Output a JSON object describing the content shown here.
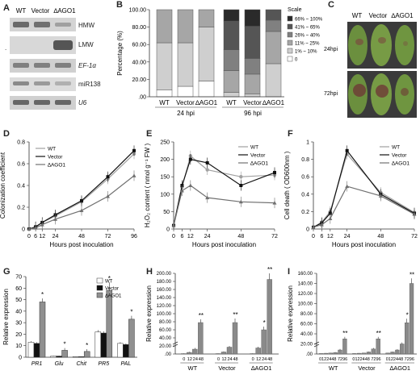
{
  "panels": {
    "A": {
      "label": "A",
      "lanes": [
        "WT",
        "Vector",
        "∆AGO1"
      ],
      "rows": [
        "HMW",
        "LMW",
        "EF-1α",
        "miR138",
        "U6"
      ],
      "dot": "."
    },
    "B": {
      "label": "B",
      "ylabel": "Percentage (%)",
      "yticks": [
        "100.00",
        "80.00",
        "60.00",
        "40.00",
        "20.00",
        ".00"
      ],
      "legend_title": "Scale",
      "legend": [
        "66% ~ 100%",
        "41% ~ 65%",
        "26% ~ 40%",
        "11% ~ 25%",
        "1% ~ 10%",
        "0"
      ],
      "legend_colors": [
        "#2a2a2a",
        "#555555",
        "#808080",
        "#a6a6a6",
        "#cfcfcf",
        "#ffffff"
      ],
      "groups": [
        {
          "name": "24 hpi",
          "bars": [
            "WT",
            "Vector",
            "∆AGO1"
          ]
        },
        {
          "name": "96 hpi",
          "bars": [
            "WT",
            "Vector",
            "∆AGO1"
          ]
        }
      ]
    },
    "C": {
      "label": "C",
      "cols": [
        "WT",
        "Vector",
        "∆AGO1"
      ],
      "rows": [
        "24hpi",
        "72hpi"
      ]
    },
    "D": {
      "label": "D",
      "ylabel": "Colonization coefficient",
      "xlabel": "Hours post inoculation",
      "yticks": [
        "0",
        "0.2",
        "0.4",
        "0.6",
        "0.8"
      ],
      "xticks": [
        "0",
        "6",
        "12",
        "24",
        "48",
        "72",
        "96"
      ],
      "legend": [
        "WT",
        "Vector",
        "∆AGO1"
      ]
    },
    "E": {
      "label": "E",
      "ylabel": "H₂O₂ content ( nmol g⁻¹ FW )",
      "xlabel": "Hours post inoculation",
      "yticks": [
        "0",
        "50",
        "100",
        "150",
        "200",
        "250"
      ],
      "xticks": [
        "0",
        "6",
        "12",
        "24",
        "48",
        "72"
      ],
      "legend": [
        "WT",
        "Vector",
        "∆AGO1"
      ]
    },
    "F": {
      "label": "F",
      "ylabel": "Cell death ( OD600nm )",
      "xlabel": "Hours post inoculation",
      "yticks": [
        "0",
        "0.2",
        "0.4",
        "0.6",
        "0.8",
        "1"
      ],
      "xticks": [
        "0",
        "6",
        "12",
        "24",
        "48",
        "72"
      ],
      "legend": [
        "WT",
        "Vector",
        "∆AGO1"
      ]
    },
    "G": {
      "label": "G",
      "ylabel": "Relative expression",
      "yticks": [
        "0",
        "10",
        "20",
        "30",
        "40",
        "50",
        "60",
        "70"
      ],
      "legend": [
        "WT",
        "Vector",
        "∆AGO1"
      ],
      "genes": [
        "PR1",
        "Glu",
        "Chit",
        "PR5",
        "PAL"
      ],
      "star": "*"
    },
    "H": {
      "label": "H",
      "ylabel": "Relative expression",
      "yticks": [
        ".00",
        "20.00",
        "40.00",
        "60.00",
        "80.00",
        "100.00",
        "120.00",
        "140.00",
        "160.00",
        "180.00",
        "200.00"
      ],
      "groups": [
        "WT",
        "Vector",
        "∆AGO1"
      ],
      "xtick_labels": [
        "0",
        "12",
        "24",
        "48"
      ],
      "star1": "*",
      "star2": "**"
    },
    "I": {
      "label": "I",
      "ylabel": "Relative expression",
      "yticks": [
        ".00",
        "20.00",
        "40.00",
        "60.00",
        "80.00",
        "100.00",
        "120.00",
        "140.00",
        "160.00"
      ],
      "groups": [
        "WT",
        "Vector",
        "∆AGO1"
      ],
      "xtick_labels": [
        "0",
        "12",
        "24",
        "48",
        "72",
        "96"
      ],
      "xtick_combined": "0122448 7296",
      "star1": "*",
      "star2": "**"
    }
  },
  "chart_data": [
    {
      "panel": "B",
      "type": "bar",
      "categories": [
        "WT 24hpi",
        "Vector 24hpi",
        "∆AGO1 24hpi",
        "WT 96hpi",
        "Vector 96hpi",
        "∆AGO1 96hpi"
      ],
      "stacked": true,
      "ylim": [
        0,
        100
      ],
      "series": [
        {
          "name": "0",
          "values": [
            8,
            12,
            18,
            0,
            0,
            0
          ]
        },
        {
          "name": "1% ~ 10%",
          "values": [
            54,
            50,
            62,
            5,
            3,
            38
          ]
        },
        {
          "name": "11% ~ 25%",
          "values": [
            38,
            38,
            20,
            25,
            23,
            37
          ]
        },
        {
          "name": "26% ~ 40%",
          "values": [
            0,
            0,
            0,
            24,
            18,
            13
          ]
        },
        {
          "name": "41% ~ 65%",
          "values": [
            0,
            0,
            0,
            33,
            37,
            12
          ]
        },
        {
          "name": "66% ~ 100%",
          "values": [
            0,
            0,
            0,
            13,
            19,
            0
          ]
        }
      ]
    },
    {
      "panel": "D",
      "type": "line",
      "x": [
        0,
        6,
        12,
        24,
        48,
        72,
        96
      ],
      "ylim": [
        0,
        0.8
      ],
      "series": [
        {
          "name": "WT",
          "values": [
            0,
            0.02,
            0.06,
            0.12,
            0.25,
            0.46,
            0.69
          ]
        },
        {
          "name": "Vector",
          "values": [
            0,
            0.02,
            0.06,
            0.13,
            0.26,
            0.48,
            0.72
          ]
        },
        {
          "name": "∆AGO1",
          "values": [
            0,
            0.01,
            0.04,
            0.09,
            0.17,
            0.3,
            0.49
          ]
        }
      ]
    },
    {
      "panel": "E",
      "type": "line",
      "x": [
        0,
        6,
        12,
        24,
        48,
        72
      ],
      "ylim": [
        0,
        250
      ],
      "series": [
        {
          "name": "WT",
          "values": [
            10,
            120,
            210,
            170,
            150,
            155
          ]
        },
        {
          "name": "Vector",
          "values": [
            10,
            125,
            200,
            190,
            125,
            162
          ]
        },
        {
          "name": "∆AGO1",
          "values": [
            10,
            110,
            125,
            90,
            78,
            75
          ]
        }
      ]
    },
    {
      "panel": "F",
      "type": "line",
      "x": [
        0,
        6,
        12,
        24,
        48,
        72
      ],
      "ylim": [
        0,
        1
      ],
      "series": [
        {
          "name": "WT",
          "values": [
            0.02,
            0.08,
            0.2,
            0.86,
            0.42,
            0.19
          ]
        },
        {
          "name": "Vector",
          "values": [
            0.02,
            0.07,
            0.18,
            0.9,
            0.4,
            0.18
          ]
        },
        {
          "name": "∆AGO1",
          "values": [
            0.02,
            0.05,
            0.12,
            0.49,
            0.38,
            0.17
          ]
        }
      ]
    },
    {
      "panel": "G",
      "type": "bar",
      "categories": [
        "PR1",
        "Glu",
        "Chit",
        "PR5",
        "PAL"
      ],
      "ylim": [
        0,
        70
      ],
      "series": [
        {
          "name": "WT",
          "values": [
            13,
            1,
            0.5,
            22,
            12
          ]
        },
        {
          "name": "Vector",
          "values": [
            12,
            1,
            0.5,
            21,
            11
          ]
        },
        {
          "name": "∆AGO1",
          "values": [
            48,
            6,
            5,
            58,
            33
          ]
        }
      ],
      "errors": [
        [
          1,
          0.3,
          0.2,
          1.5,
          1
        ],
        [
          1,
          0.3,
          0.2,
          1.5,
          1
        ],
        [
          3,
          2,
          2,
          7,
          3
        ]
      ],
      "significant": [
        true,
        true,
        true,
        true,
        true
      ]
    },
    {
      "panel": "H",
      "type": "bar",
      "groups": [
        "WT",
        "Vector",
        "∆AGO1"
      ],
      "categories": [
        "0",
        "12",
        "24",
        "48"
      ],
      "ylim": [
        0,
        200
      ],
      "values": [
        [
          1,
          4,
          12,
          78
        ],
        [
          1,
          5,
          17,
          78
        ],
        [
          1,
          15,
          60,
          185
        ]
      ],
      "errors": [
        [
          0.5,
          1.5,
          3,
          8
        ],
        [
          0.5,
          1.5,
          3,
          10
        ],
        [
          0.5,
          3,
          8,
          15
        ]
      ]
    },
    {
      "panel": "I",
      "type": "bar",
      "groups": [
        "WT",
        "Vector",
        "∆AGO1"
      ],
      "categories": [
        "0",
        "12",
        "24",
        "48",
        "72",
        "96"
      ],
      "ylim": [
        0,
        160
      ],
      "values": [
        [
          1,
          1.5,
          2,
          3,
          8,
          30
        ],
        [
          1,
          1.5,
          2,
          4,
          10,
          30
        ],
        [
          2,
          4,
          8,
          20,
          62,
          140
        ]
      ],
      "errors": [
        [
          0.2,
          0.3,
          0.4,
          0.6,
          2,
          4
        ],
        [
          0.2,
          0.3,
          0.4,
          0.8,
          2,
          4
        ],
        [
          0.3,
          0.6,
          1.5,
          3,
          8,
          10
        ]
      ]
    }
  ]
}
